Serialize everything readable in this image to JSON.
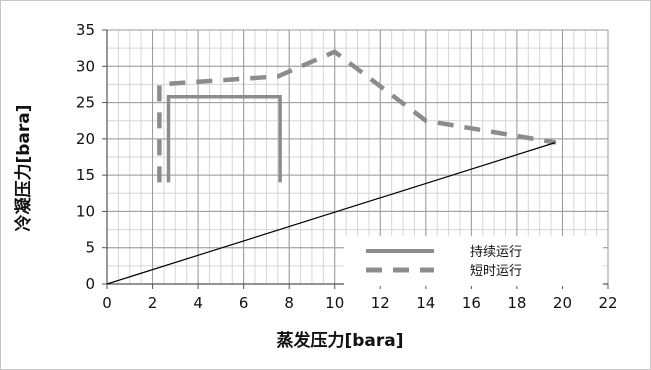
{
  "chart_data": {
    "type": "line",
    "xlabel": "蒸发压力[bara]",
    "ylabel": "冷凝压力[bara]",
    "xlim": [
      0,
      22
    ],
    "ylim": [
      0,
      35
    ],
    "xticks": [
      0,
      2,
      4,
      6,
      8,
      10,
      12,
      14,
      16,
      18,
      20,
      22
    ],
    "yticks": [
      0,
      5,
      10,
      15,
      20,
      25,
      30,
      35
    ],
    "grid": "major-and-minor",
    "legend_position": "bottom-right",
    "series": [
      {
        "name": "持续运行",
        "style": "solid",
        "color": "#8c8c8c",
        "points": [
          [
            2.7,
            14
          ],
          [
            2.7,
            25.8
          ],
          [
            7.6,
            25.8
          ],
          [
            7.6,
            14
          ]
        ]
      },
      {
        "name": "短时运行",
        "style": "dashed",
        "color": "#8c8c8c",
        "points": [
          [
            2.3,
            14
          ],
          [
            2.3,
            27.5
          ],
          [
            7.5,
            28.6
          ],
          [
            10,
            32
          ],
          [
            14,
            22.5
          ],
          [
            19.7,
            19.5
          ]
        ]
      },
      {
        "style": "solid-thin",
        "color": "#000000",
        "points": [
          [
            0,
            0
          ],
          [
            19.7,
            19.5
          ]
        ]
      }
    ]
  }
}
